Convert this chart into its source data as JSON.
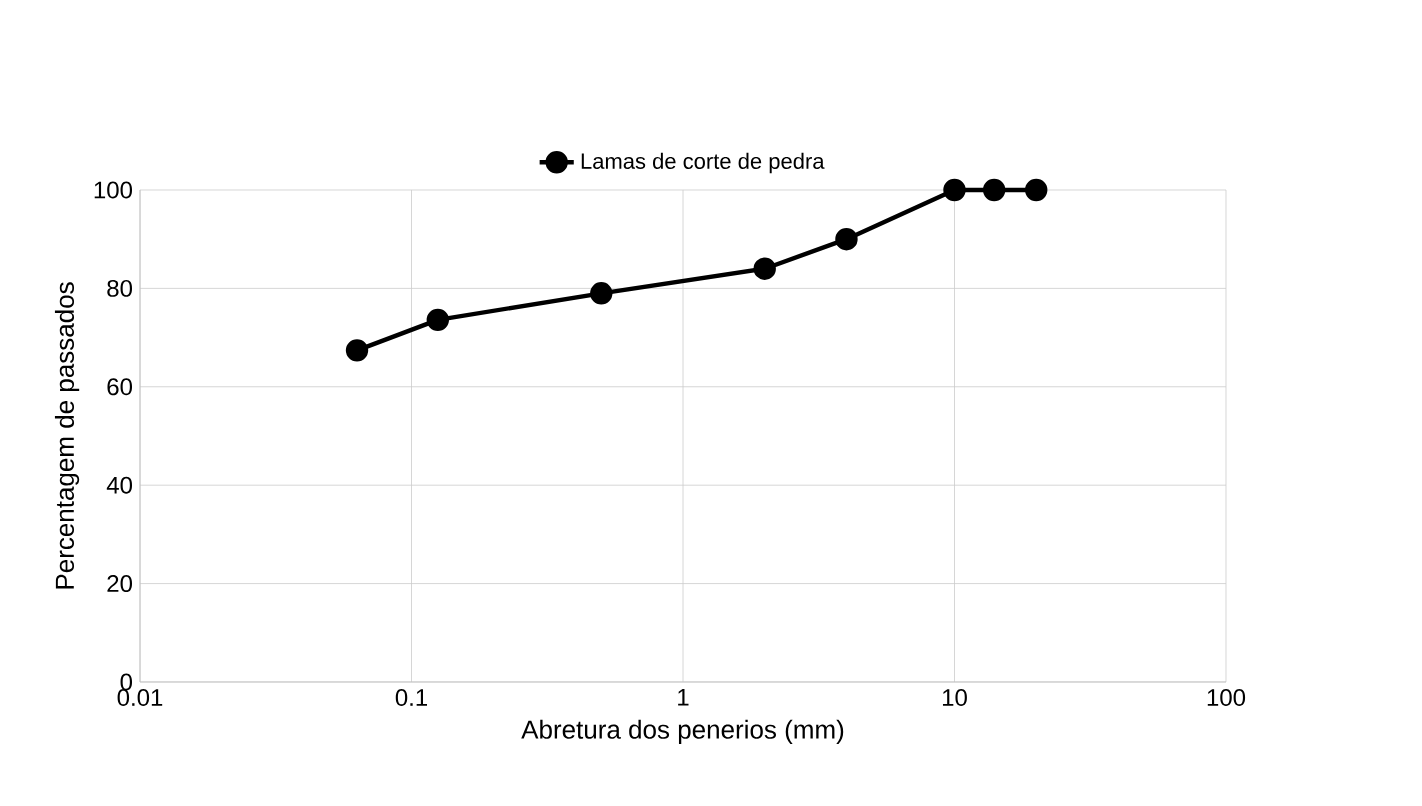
{
  "chart_data": {
    "type": "line",
    "xlabel": "Abretura dos penerios (mm)",
    "ylabel": "Percentagem de passados",
    "x": [
      0.063,
      0.125,
      0.5,
      2,
      4,
      10,
      14,
      20
    ],
    "series": [
      {
        "name": "Lamas de corte de pedra",
        "color": "#000000",
        "values": [
          67.4,
          73.6,
          79,
          84,
          90,
          100,
          100,
          100
        ]
      }
    ],
    "log": "x",
    "xlim": [
      0.01,
      100
    ],
    "xticks": [
      0.01,
      0.1,
      1,
      10,
      100
    ],
    "ylim": [
      0,
      100
    ],
    "yticks": [
      0,
      20,
      40,
      60,
      80,
      100
    ],
    "grid": true,
    "legend": "top",
    "marker": "circle",
    "line_style": "solid"
  }
}
